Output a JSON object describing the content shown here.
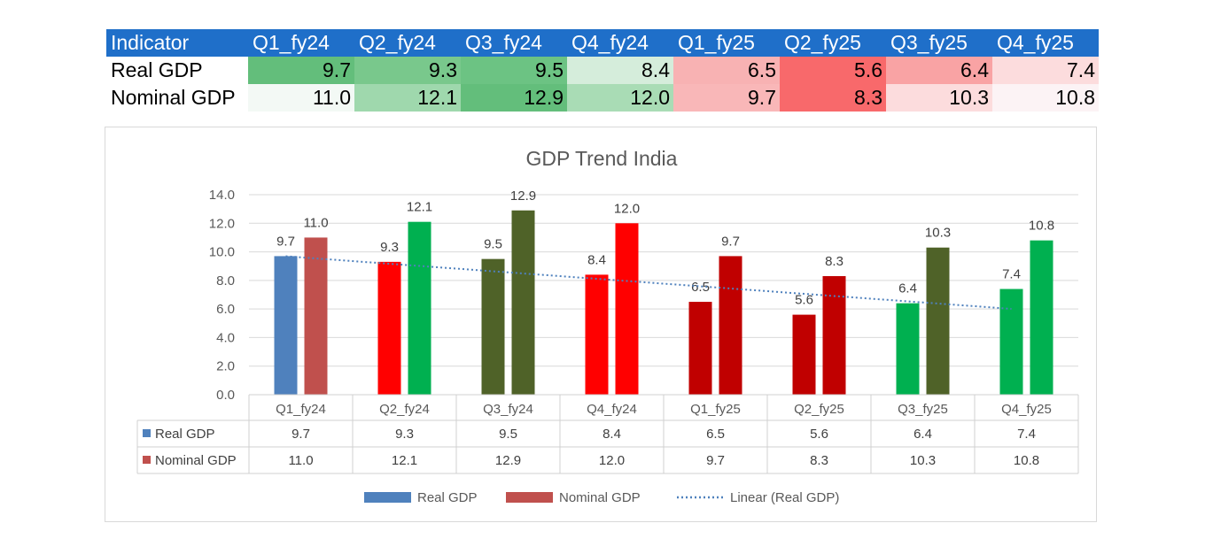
{
  "table": {
    "header": [
      "Indicator",
      "Q1_fy24",
      "Q2_fy24",
      "Q3_fy24",
      "Q4_fy24",
      "Q1_fy25",
      "Q2_fy25",
      "Q3_fy25",
      "Q4_fy25"
    ],
    "rows": [
      {
        "label": "Real GDP",
        "values": [
          "9.7",
          "9.3",
          "9.5",
          "8.4",
          "6.5",
          "5.6",
          "6.4",
          "7.4"
        ],
        "colors": [
          "#63be7b",
          "#79c88c",
          "#6cc383",
          "#d5eddb",
          "#f8b2b3",
          "#f8696b",
          "#f9a3a4",
          "#fcdcdd"
        ]
      },
      {
        "label": "Nominal GDP",
        "values": [
          "11.0",
          "12.1",
          "12.9",
          "12.0",
          "9.7",
          "8.3",
          "10.3",
          "10.8"
        ],
        "colors": [
          "#f3f9f5",
          "#9fd8ad",
          "#63be7b",
          "#a9dcb5",
          "#f9b7b8",
          "#f8696b",
          "#fcdcdd",
          "#fcf3f5"
        ]
      }
    ],
    "header_color": "#1f6fc9"
  },
  "chart_data": {
    "type": "bar",
    "title": "GDP Trend India",
    "categories": [
      "Q1_fy24",
      "Q2_fy24",
      "Q3_fy24",
      "Q4_fy24",
      "Q1_fy25",
      "Q2_fy25",
      "Q3_fy25",
      "Q4_fy25"
    ],
    "series": [
      {
        "name": "Real GDP",
        "values": [
          9.7,
          9.3,
          9.5,
          8.4,
          6.5,
          5.6,
          6.4,
          7.4
        ],
        "legend_color": "#4f81bd",
        "bar_colors": [
          "#4f81bd",
          "#ff0000",
          "#4f6228",
          "#ff0000",
          "#c00000",
          "#c00000",
          "#00b050",
          "#00b050"
        ]
      },
      {
        "name": "Nominal GDP",
        "values": [
          11.0,
          12.1,
          12.9,
          12.0,
          9.7,
          8.3,
          10.3,
          10.8
        ],
        "legend_color": "#c0504d",
        "bar_colors": [
          "#c0504d",
          "#00b050",
          "#4f6228",
          "#ff0000",
          "#c00000",
          "#c00000",
          "#4f6228",
          "#00b050"
        ]
      }
    ],
    "trendline": {
      "name": "Linear (Real GDP)",
      "color": "#4f81bd",
      "style": "dotted"
    },
    "ylim": [
      0,
      14
    ],
    "yticks": [
      "0.0",
      "2.0",
      "4.0",
      "6.0",
      "8.0",
      "10.0",
      "12.0",
      "14.0"
    ],
    "grid": true,
    "data_table": true,
    "legend_placement": "bottom"
  }
}
